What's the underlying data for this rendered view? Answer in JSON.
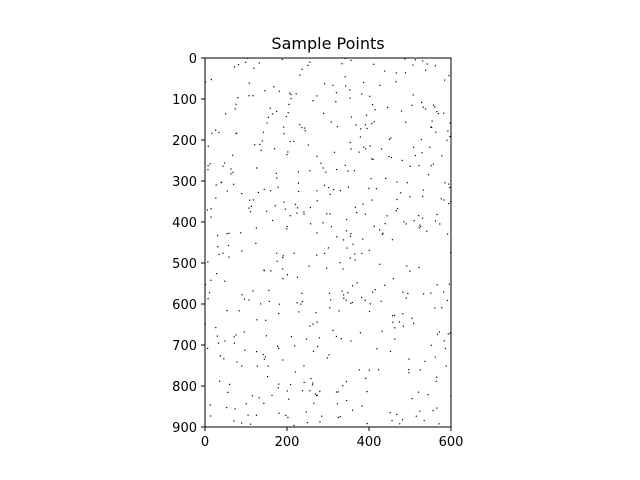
{
  "chart_data": {
    "type": "scatter",
    "title": "Sample Points",
    "xlabel": "",
    "ylabel": "",
    "xlim": [
      0,
      600
    ],
    "ylim": [
      900,
      0
    ],
    "y_inverted": true,
    "grid": false,
    "marker_color": "#000000",
    "x_ticks": [
      "0",
      "200",
      "400",
      "600"
    ],
    "y_ticks": [
      "0",
      "100",
      "200",
      "300",
      "400",
      "500",
      "600",
      "700",
      "800",
      "900"
    ],
    "point_count": 520,
    "points_random_seed": 20240611
  }
}
